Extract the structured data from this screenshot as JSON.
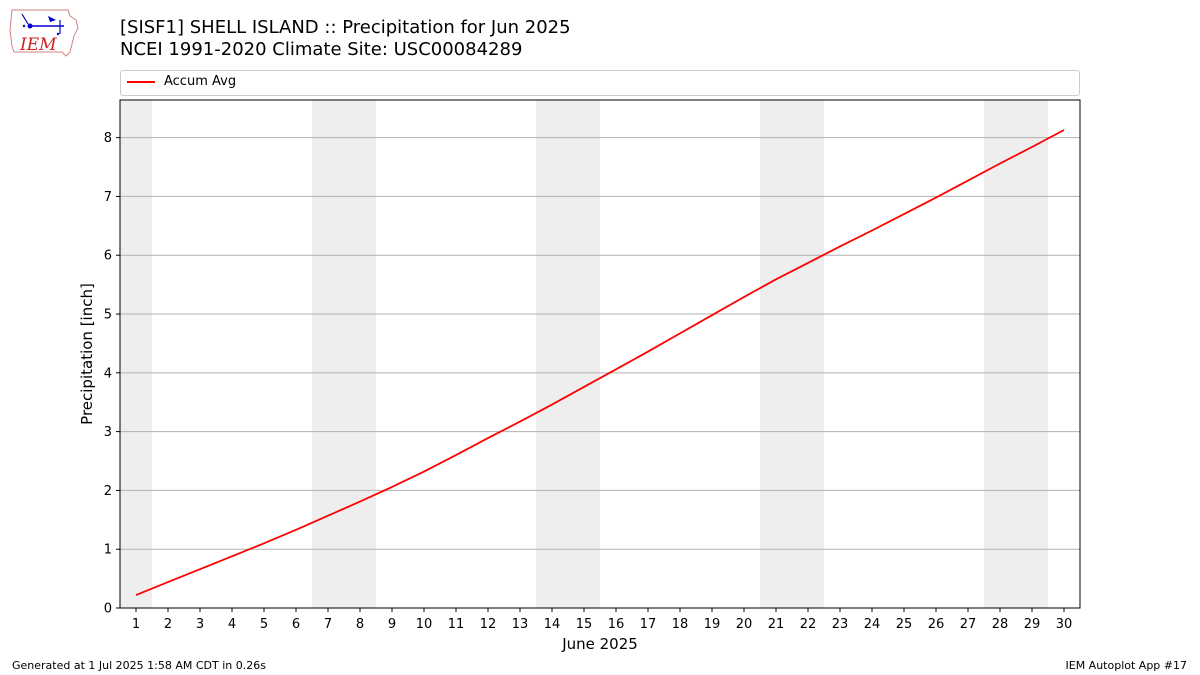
{
  "header": {
    "title_line1": "[SISF1] SHELL ISLAND :: Precipitation for Jun 2025",
    "title_line2": "NCEI 1991-2020 Climate Site: USC00084289"
  },
  "logo": {
    "text": "IEM"
  },
  "footer": {
    "generated": "Generated at 1 Jul 2025 1:58 AM CDT in 0.26s",
    "app": "IEM Autoplot App #17"
  },
  "chart_data": {
    "type": "line",
    "title": "[SISF1] SHELL ISLAND :: Precipitation for Jun 2025",
    "subtitle": "NCEI 1991-2020 Climate Site: USC00084289",
    "xlabel": "June 2025",
    "ylabel": "Precipitation [inch]",
    "x": [
      1,
      2,
      3,
      4,
      5,
      6,
      7,
      8,
      9,
      10,
      11,
      12,
      13,
      14,
      15,
      16,
      17,
      18,
      19,
      20,
      21,
      22,
      23,
      24,
      25,
      26,
      27,
      28,
      29,
      30
    ],
    "xlim": [
      0.5,
      30.5
    ],
    "ylim": [
      0,
      8.64
    ],
    "yticks": [
      0,
      1,
      2,
      3,
      4,
      5,
      6,
      7,
      8
    ],
    "grid": "y",
    "weekend_shading": [
      [
        0.5,
        1.5
      ],
      [
        6.5,
        8.5
      ],
      [
        13.5,
        15.5
      ],
      [
        20.5,
        22.5
      ],
      [
        27.5,
        29.5
      ]
    ],
    "legend_position": "top",
    "series": [
      {
        "name": "Accum Avg",
        "color": "#ff0000",
        "values": [
          0.22,
          0.44,
          0.66,
          0.88,
          1.1,
          1.33,
          1.57,
          1.81,
          2.06,
          2.32,
          2.6,
          2.89,
          3.17,
          3.46,
          3.76,
          4.06,
          4.36,
          4.67,
          4.98,
          5.29,
          5.59,
          5.87,
          6.15,
          6.42,
          6.7,
          6.98,
          7.27,
          7.56,
          7.84,
          8.13
        ]
      }
    ]
  }
}
